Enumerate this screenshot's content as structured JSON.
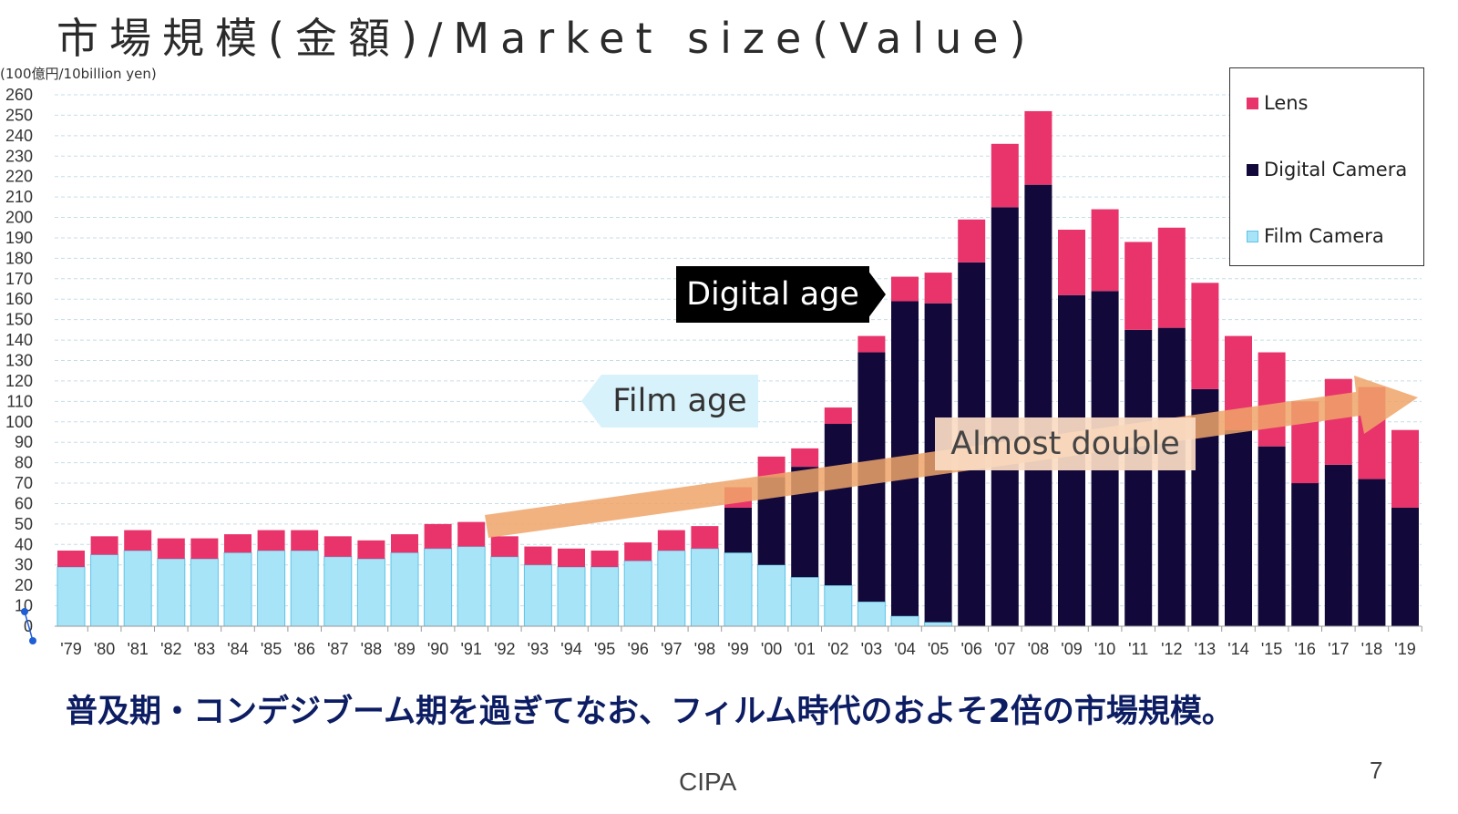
{
  "title": "市場規模(金額)/Market size(Value)",
  "unit_label": "(100億円/10billion yen)",
  "caption": "普及期・コンデジブーム期を過ぎてなお、フィルム時代のおよそ2倍の市場規模。",
  "source": "CIPA",
  "page_number": "7",
  "legend": {
    "lens": "Lens",
    "digital": "Digital Camera",
    "film": "Film Camera"
  },
  "annotations": {
    "digital_age": "Digital age",
    "film_age": "Film age",
    "almost_double": "Almost double"
  },
  "colors": {
    "lens": "#e8336b",
    "digital": "#12093a",
    "film": "#a8e4f7",
    "film_border": "#5cc3e8",
    "grid": "#c5dde8",
    "trend_arrow": "#eea56a",
    "axis_text": "#333333",
    "tiny_marker": "#1f5fd6"
  },
  "chart_data": {
    "type": "bar",
    "stacked": true,
    "categories": [
      "'79",
      "'80",
      "'81",
      "'82",
      "'83",
      "'84",
      "'85",
      "'86",
      "'87",
      "'88",
      "'89",
      "'90",
      "'91",
      "'92",
      "'93",
      "'94",
      "'95",
      "'96",
      "'97",
      "'98",
      "'99",
      "'00",
      "'01",
      "'02",
      "'03",
      "'04",
      "'05",
      "'06",
      "'07",
      "'08",
      "'09",
      "'10",
      "'11",
      "'12",
      "'13",
      "'14",
      "'15",
      "'16",
      "'17",
      "'18",
      "'19"
    ],
    "series": [
      {
        "name": "Film Camera",
        "key": "film",
        "values": [
          29,
          35,
          37,
          33,
          33,
          36,
          37,
          37,
          34,
          33,
          36,
          38,
          39,
          34,
          30,
          29,
          29,
          32,
          37,
          38,
          36,
          30,
          24,
          20,
          12,
          5,
          2,
          0,
          0,
          0,
          0,
          0,
          0,
          0,
          0,
          0,
          0,
          0,
          0,
          0,
          0
        ]
      },
      {
        "name": "Digital Camera",
        "key": "digital",
        "values": [
          0,
          0,
          0,
          0,
          0,
          0,
          0,
          0,
          0,
          0,
          0,
          0,
          0,
          0,
          0,
          0,
          0,
          0,
          0,
          0,
          22,
          43,
          54,
          79,
          122,
          154,
          156,
          178,
          205,
          216,
          162,
          164,
          145,
          146,
          116,
          96,
          88,
          70,
          79,
          72,
          58
        ]
      },
      {
        "name": "Lens",
        "key": "lens",
        "values": [
          8,
          9,
          10,
          10,
          10,
          9,
          10,
          10,
          10,
          9,
          9,
          12,
          12,
          10,
          9,
          9,
          8,
          9,
          10,
          11,
          10,
          10,
          9,
          8,
          8,
          12,
          15,
          21,
          31,
          36,
          32,
          40,
          43,
          49,
          52,
          46,
          46,
          40,
          42,
          45,
          38
        ]
      }
    ],
    "ylim": [
      0,
      260
    ],
    "yticks": [
      0,
      10,
      20,
      30,
      40,
      50,
      60,
      70,
      80,
      90,
      100,
      110,
      120,
      130,
      140,
      150,
      160,
      170,
      180,
      190,
      200,
      210,
      220,
      230,
      240,
      250,
      260
    ],
    "grid": true,
    "legend_position": "top-right",
    "title": "市場規模(金額)/Market size(Value)",
    "ylabel": "(100億円/10billion yen)",
    "xlabel": ""
  }
}
